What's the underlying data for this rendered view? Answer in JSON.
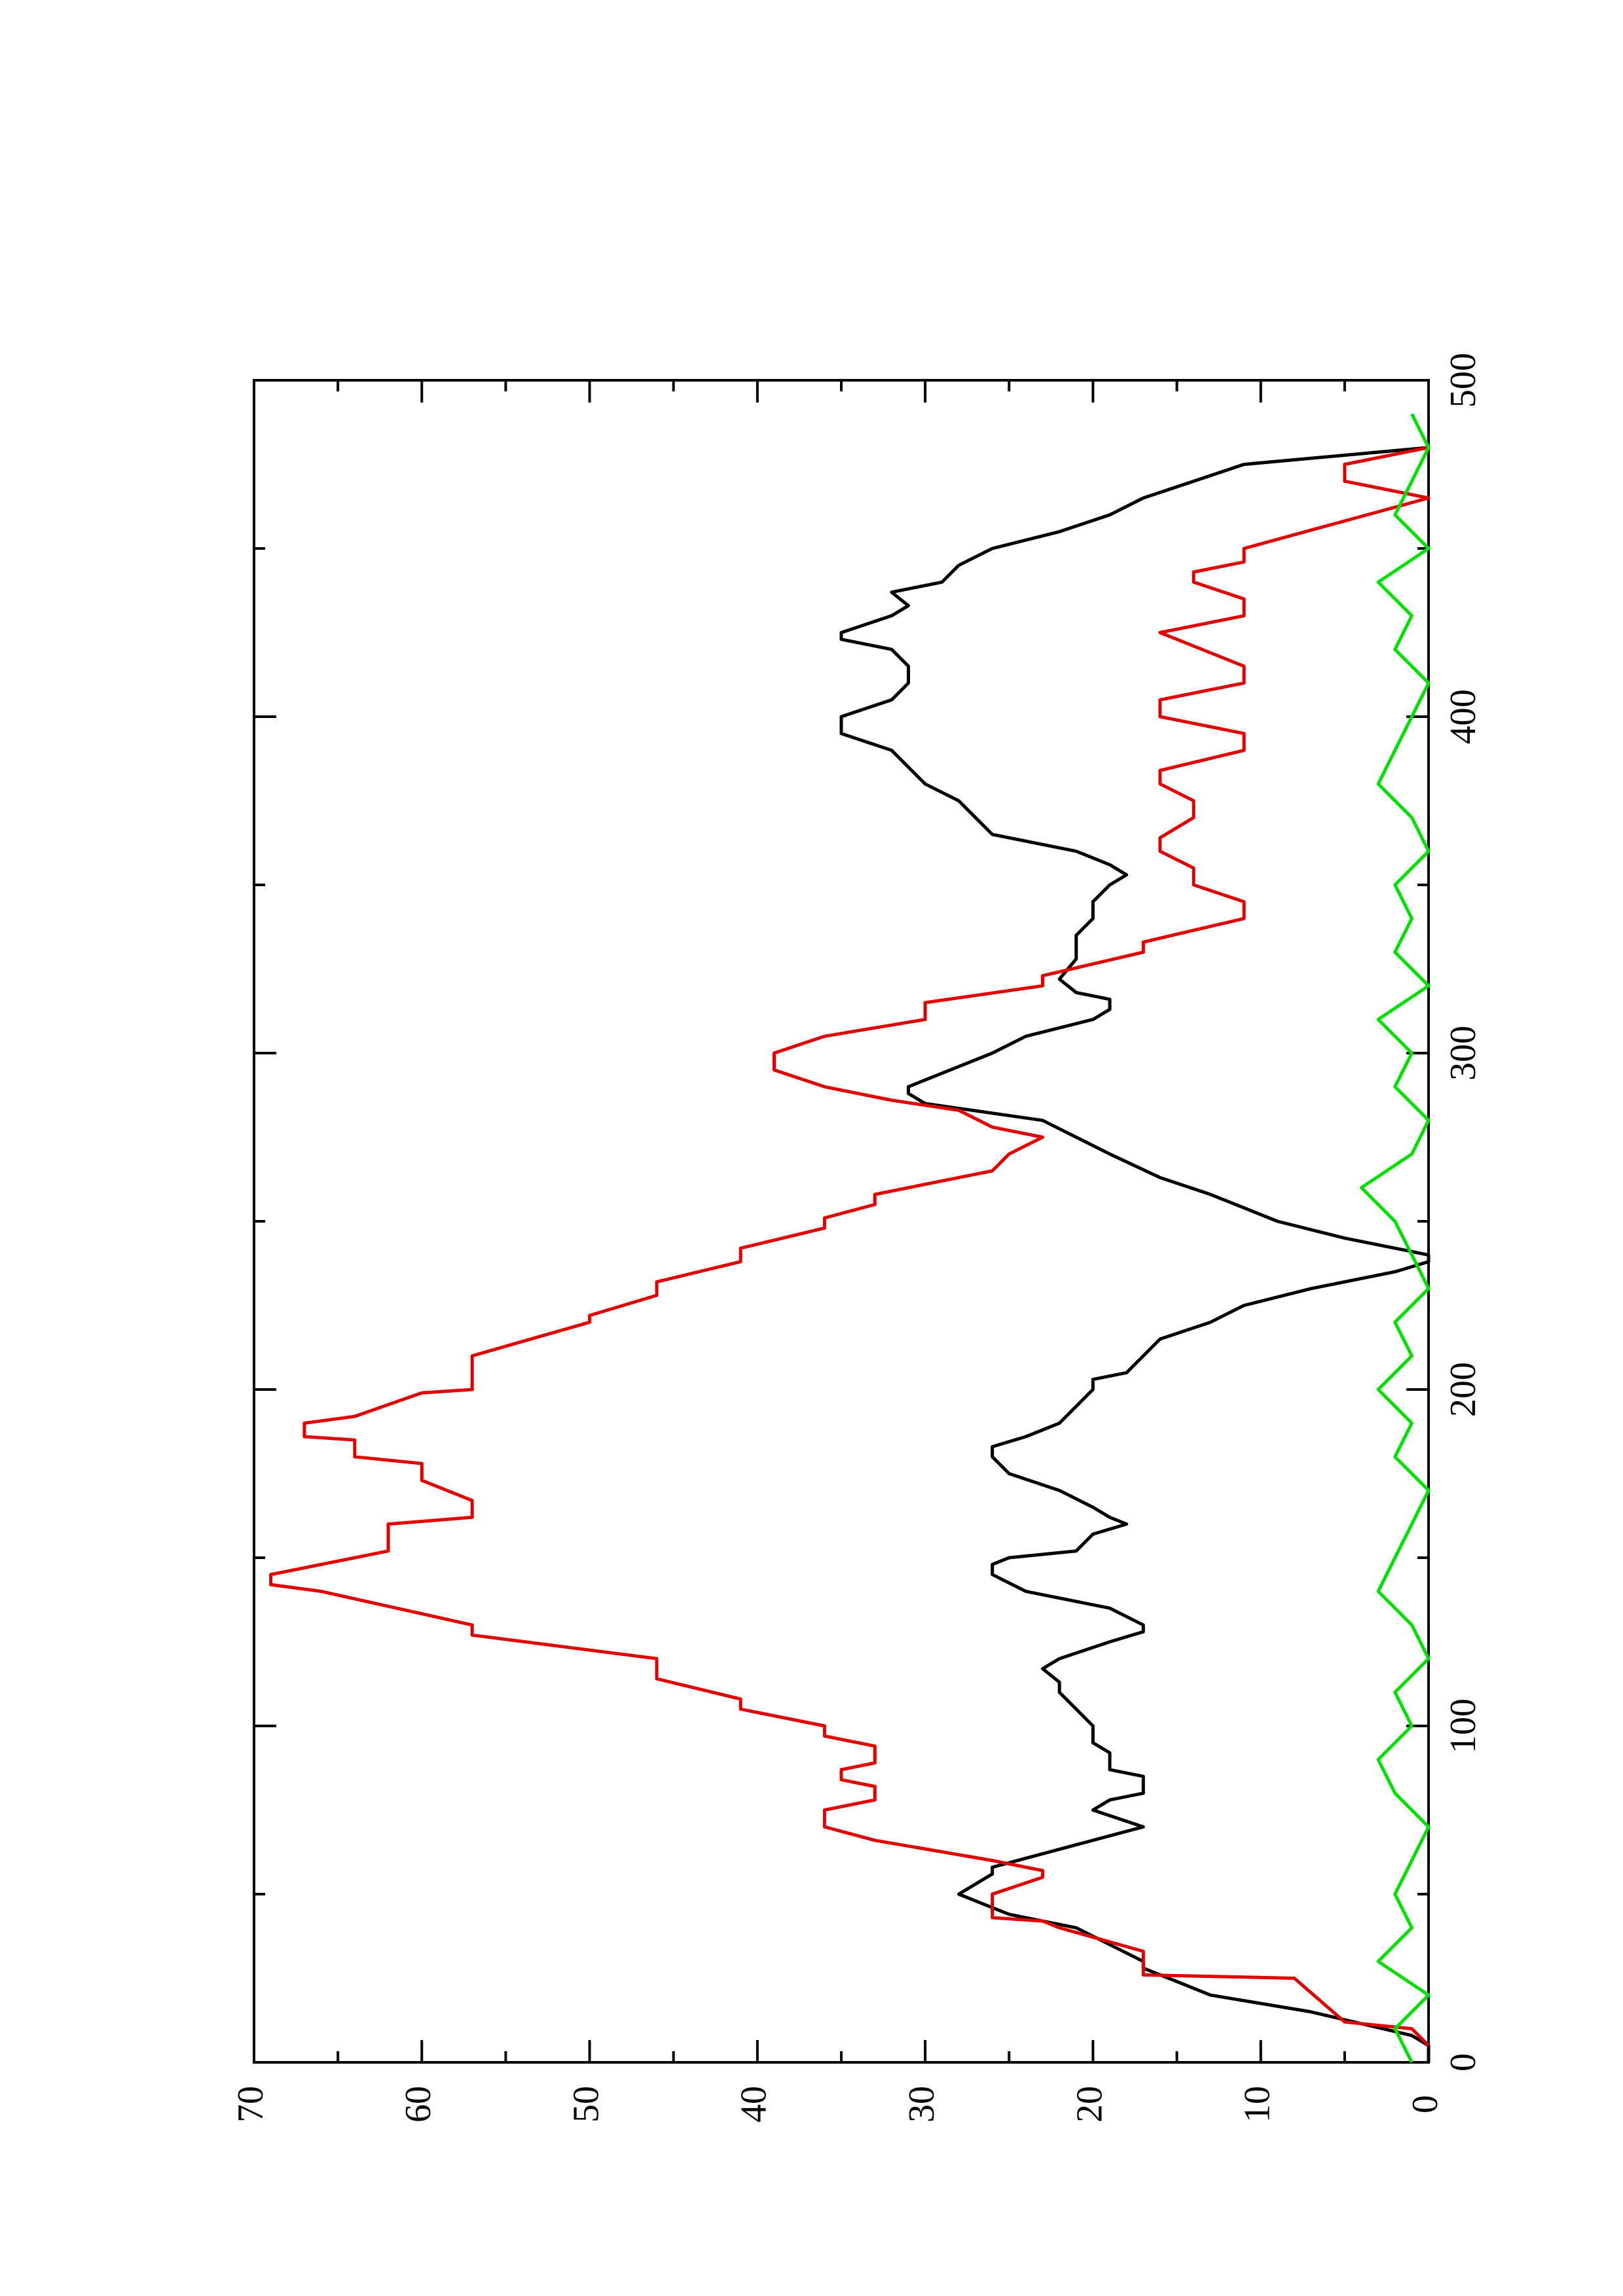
{
  "chart_data": {
    "type": "line",
    "xlim": [
      0,
      500
    ],
    "xticks": [
      0,
      100,
      200,
      300,
      400,
      500
    ],
    "xminorticks": [
      50,
      150,
      250,
      350,
      450
    ],
    "ylim": [
      0,
      70
    ],
    "yticks": [
      0,
      10,
      20,
      30,
      40,
      50,
      60,
      70
    ],
    "yminorticks": [
      5,
      15,
      25,
      35,
      45,
      55,
      65
    ],
    "rotated": true,
    "series": [
      {
        "color": "#000000",
        "x": [
          0,
          5,
          8,
          15,
          20,
          24,
          28,
          30,
          40,
          44,
          48,
          50,
          53,
          56,
          58,
          62,
          70,
          75,
          78,
          80,
          85,
          87,
          92,
          95,
          100,
          105,
          110,
          113,
          117,
          120,
          125,
          128,
          130,
          135,
          140,
          145,
          148,
          150,
          152,
          157,
          160,
          162,
          165,
          170,
          175,
          180,
          183,
          186,
          190,
          195,
          200,
          203,
          205,
          210,
          215,
          220,
          225,
          230,
          235,
          238,
          240,
          245,
          250,
          258,
          263,
          270,
          275,
          280,
          285,
          288,
          290,
          292,
          296,
          300,
          305,
          310,
          313,
          316,
          318,
          322,
          328,
          335,
          340,
          345,
          350,
          353,
          356,
          360,
          365,
          370,
          375,
          380,
          385,
          390,
          395,
          400,
          405,
          410,
          415,
          420,
          423,
          425,
          430,
          433,
          437,
          440,
          445,
          450,
          455,
          460,
          465,
          470,
          475,
          480
        ],
        "values": [
          0,
          0,
          1,
          7,
          13,
          15,
          17,
          17,
          21,
          25,
          27,
          28,
          27,
          26,
          26,
          23,
          17,
          20,
          19,
          17,
          17,
          19,
          19,
          20,
          20,
          21,
          22,
          22,
          23,
          22,
          19,
          17,
          17,
          19,
          24,
          26,
          26,
          25,
          21,
          20,
          18,
          19,
          20,
          22,
          25,
          26,
          26,
          24,
          22,
          21,
          20,
          20,
          18,
          17,
          16,
          13,
          11,
          7,
          2,
          0,
          0,
          5,
          9,
          13,
          16,
          19,
          21,
          23,
          30,
          31,
          31,
          30,
          28,
          26,
          24,
          20,
          19,
          19,
          21,
          22,
          21,
          21,
          20,
          20,
          19,
          18,
          19,
          21,
          26,
          27,
          28,
          30,
          31,
          32,
          35,
          35,
          32,
          31,
          31,
          32,
          35,
          35,
          32,
          31,
          32,
          29,
          28,
          26,
          22,
          19,
          17,
          14,
          11,
          0
        ]
      },
      {
        "color": "#e00000",
        "x": [
          5,
          10,
          12,
          25,
          26,
          33,
          40,
          42,
          43,
          50,
          55,
          57,
          60,
          66,
          70,
          75,
          78,
          82,
          84,
          87,
          89,
          94,
          97,
          100,
          105,
          108,
          114,
          120,
          127,
          130,
          140,
          142,
          145,
          148,
          152,
          160,
          162,
          167,
          173,
          178,
          180,
          185,
          186,
          190,
          192,
          199,
          200,
          210,
          220,
          222,
          228,
          232,
          238,
          242,
          248,
          251,
          255,
          258,
          265,
          270,
          275,
          278,
          283,
          286,
          290,
          295,
          300,
          305,
          310,
          315,
          320,
          323,
          330,
          333,
          340,
          345,
          350,
          355,
          360,
          364,
          370,
          375,
          380,
          384,
          390,
          395,
          400,
          405,
          410,
          415,
          425,
          430,
          435,
          440,
          443,
          446,
          450,
          465,
          470,
          475,
          480
        ],
        "values": [
          0,
          1,
          5,
          8,
          17,
          17,
          22,
          23,
          26,
          26,
          23,
          23,
          26,
          33,
          36,
          36,
          33,
          33,
          35,
          35,
          33,
          33,
          36,
          36,
          41,
          41,
          46,
          46,
          57,
          57,
          66,
          69,
          69,
          66,
          62,
          62,
          57,
          57,
          60,
          60,
          64,
          64,
          67,
          67,
          64,
          60,
          57,
          57,
          50,
          50,
          46,
          46,
          41,
          41,
          36,
          36,
          33,
          33,
          26,
          25,
          23,
          26,
          28,
          32,
          36,
          39,
          39,
          36,
          30,
          30,
          23,
          23,
          17,
          17,
          11,
          11,
          14,
          14,
          16,
          16,
          14,
          14,
          16,
          16,
          11,
          11,
          16,
          16,
          11,
          11,
          16,
          11,
          11,
          14,
          14,
          11,
          11,
          0,
          5,
          5,
          0
        ]
      },
      {
        "color": "#00e000",
        "x": [
          0,
          10,
          20,
          30,
          40,
          50,
          60,
          70,
          80,
          90,
          100,
          110,
          120,
          130,
          140,
          150,
          160,
          170,
          180,
          190,
          200,
          210,
          220,
          230,
          240,
          250,
          260,
          270,
          280,
          290,
          300,
          310,
          320,
          330,
          340,
          350,
          360,
          370,
          380,
          390,
          400,
          410,
          420,
          430,
          440,
          450,
          460,
          470,
          480,
          490
        ],
        "values": [
          1,
          2,
          0,
          3,
          1,
          2,
          1,
          0,
          2,
          3,
          1,
          2,
          0,
          1,
          3,
          2,
          1,
          0,
          2,
          1,
          3,
          1,
          2,
          0,
          1,
          2,
          4,
          1,
          0,
          2,
          1,
          3,
          0,
          2,
          1,
          2,
          0,
          1,
          3,
          2,
          1,
          0,
          2,
          1,
          3,
          0,
          2,
          1,
          0,
          1
        ]
      }
    ]
  }
}
